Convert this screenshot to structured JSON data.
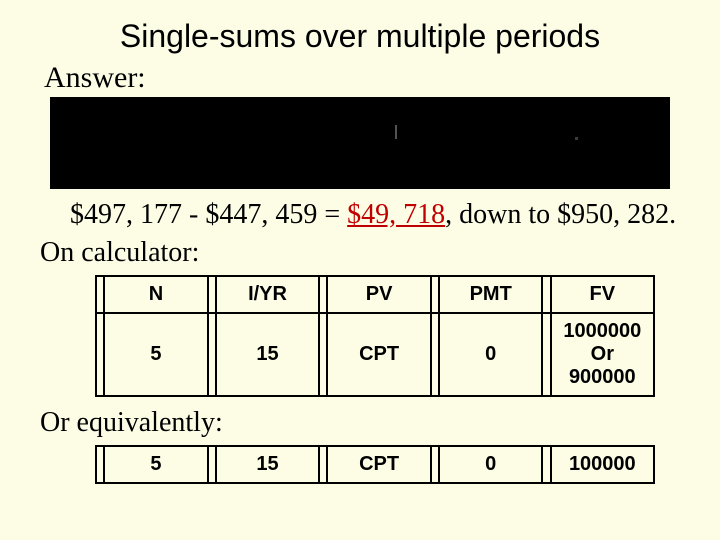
{
  "title": "Single-sums over multiple periods",
  "answer_label": "Answer:",
  "calc_line": {
    "part1": "$497, 177 - $447, 459 = ",
    "highlight": "$49, 718",
    "part2": ",  down to $950, 282."
  },
  "on_calculator_label": "On calculator:",
  "or_equiv_label": "Or equivalently:",
  "table1": {
    "headers": [
      "N",
      "I/YR",
      "PV",
      "PMT",
      "FV"
    ],
    "row": [
      "5",
      "15",
      "CPT",
      "0",
      "1000000\nOr\n900000"
    ]
  },
  "table2": {
    "row": [
      "5",
      "15",
      "CPT",
      "0",
      "100000"
    ]
  },
  "styling": {
    "background_color": "#fdfde6",
    "highlight_color": "#c00000",
    "blackbox_color": "#000000",
    "border_color": "#000000",
    "title_font": "Arial",
    "body_font": "Times New Roman",
    "title_fontsize": 32,
    "body_fontsize": 28,
    "table_fontsize": 20
  }
}
